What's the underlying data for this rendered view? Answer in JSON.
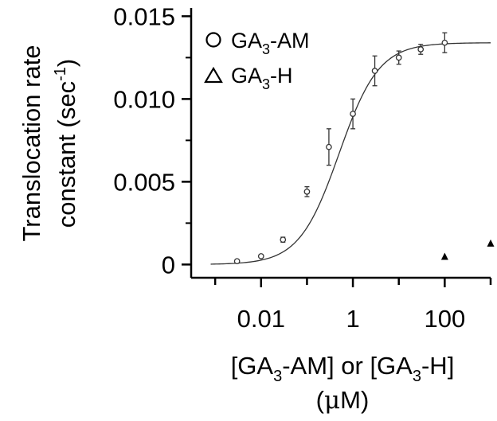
{
  "chart_data": {
    "type": "scatter",
    "y_axis_title_line1": "Translocation rate",
    "y_axis_title_line2_prefix": "constant (sec",
    "y_axis_title_line2_sup": "-1",
    "y_axis_title_line2_suffix": ")",
    "x_axis_title_line1": {
      "part1": "[GA",
      "sub1": "3",
      "part2": "-AM] or [GA",
      "sub2": "3",
      "part3": "-H]"
    },
    "x_axis_title_line2": {
      "unit_mu": "μ",
      "unit_rest": "M)",
      "open_paren": "("
    },
    "x_scale": "log",
    "xlim": [
      0.0003,
      1000
    ],
    "ylim": [
      -0.0008,
      0.0155
    ],
    "x_ticks": [
      {
        "value": 0.01,
        "label": "0.01"
      },
      {
        "value": 1,
        "label": "1"
      },
      {
        "value": 100,
        "label": "100"
      }
    ],
    "y_ticks": [
      {
        "value": 0,
        "label": "0"
      },
      {
        "value": 0.005,
        "label": "0.005"
      },
      {
        "value": 0.01,
        "label": "0.010"
      },
      {
        "value": 0.015,
        "label": "0.015"
      }
    ],
    "legend": [
      {
        "marker": "○",
        "prefix": "GA",
        "sub": "3",
        "suffix": "-AM"
      },
      {
        "marker": "△",
        "prefix": "GA",
        "sub": "3",
        "suffix": "-H"
      }
    ],
    "legend_placement": "top-left",
    "series": [
      {
        "name": "GA3-AM",
        "marker": "circle-open",
        "points": [
          {
            "x": 0.003,
            "y": 0.0002,
            "err": 8e-05
          },
          {
            "x": 0.01,
            "y": 0.0005,
            "err": 8e-05
          },
          {
            "x": 0.03,
            "y": 0.0015,
            "err": 0.00015
          },
          {
            "x": 0.1,
            "y": 0.0044,
            "err": 0.0003
          },
          {
            "x": 0.3,
            "y": 0.0071,
            "err": 0.0011
          },
          {
            "x": 1,
            "y": 0.0091,
            "err": 0.0009
          },
          {
            "x": 3,
            "y": 0.0117,
            "err": 0.0009
          },
          {
            "x": 10,
            "y": 0.0125,
            "err": 0.0004
          },
          {
            "x": 30,
            "y": 0.013,
            "err": 0.0003
          },
          {
            "x": 100,
            "y": 0.0134,
            "err": 0.0006
          }
        ]
      },
      {
        "name": "GA3-H",
        "marker": "triangle-filled",
        "points": [
          {
            "x": 100,
            "y": 0.0005
          },
          {
            "x": 1000,
            "y": 0.0013
          }
        ]
      }
    ],
    "fit_curve": {
      "series": "GA3-AM",
      "model": "hill",
      "bottom": 0.0,
      "top": 0.0134,
      "ec50": 0.5,
      "hill": 1.0
    }
  }
}
